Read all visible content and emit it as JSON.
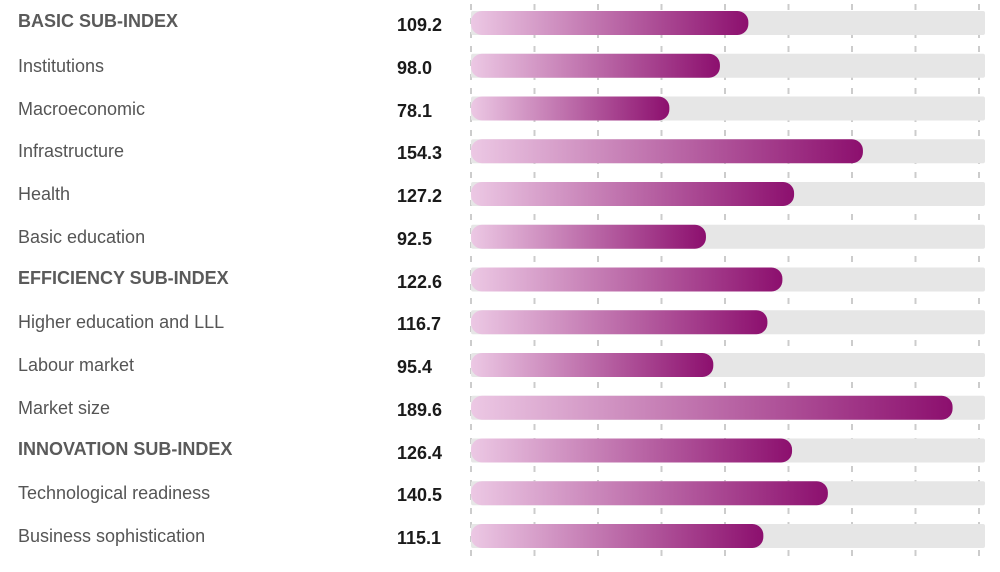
{
  "chart_data": {
    "type": "bar",
    "orientation": "horizontal",
    "categories": [
      "BASIC SUB-INDEX",
      "Institutions",
      "Macroeconomic",
      "Infrastructure",
      "Health",
      "Basic education",
      "EFFICIENCY SUB-INDEX",
      "Higher education and LLL",
      "Labour market",
      "Market size",
      "INNOVATION SUB-INDEX",
      "Technological readiness",
      "Business sophistication"
    ],
    "values": [
      109.2,
      98.0,
      78.1,
      154.3,
      127.2,
      92.5,
      122.6,
      116.7,
      95.4,
      189.6,
      126.4,
      140.5,
      115.1
    ],
    "value_labels": [
      "109.2",
      "98.0",
      "78.1",
      "154.3",
      "127.2",
      "92.5",
      "122.6",
      "116.7",
      "95.4",
      "189.6",
      "126.4",
      "140.5",
      "115.1"
    ],
    "header_rows": [
      0,
      6,
      10
    ],
    "xlim": [
      0,
      200
    ],
    "grid": true,
    "colors": {
      "bar_start": "#ecc8e4",
      "bar_end": "#8c0f6e",
      "track": "#e6e6e6",
      "grid": "#cccccc"
    }
  }
}
